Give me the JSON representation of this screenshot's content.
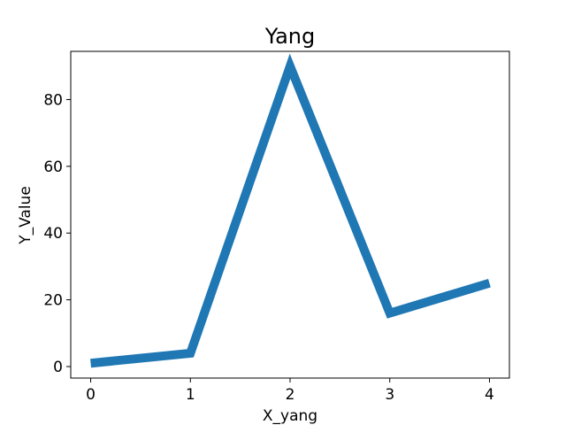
{
  "chart_data": {
    "type": "line",
    "title": "Yang",
    "xlabel": "X_yang",
    "ylabel": "Y_Value",
    "x": [
      0,
      1,
      2,
      3,
      4
    ],
    "series": [
      {
        "values": [
          1,
          4,
          90,
          16,
          25
        ]
      }
    ],
    "xlim": [
      -0.2,
      4.2
    ],
    "ylim": [
      -3.45,
      94.45
    ],
    "xticks": [
      0,
      1,
      2,
      3,
      4
    ],
    "yticks": [
      0,
      20,
      40,
      60,
      80
    ],
    "grid": false,
    "line_color": "#1f77b4"
  }
}
